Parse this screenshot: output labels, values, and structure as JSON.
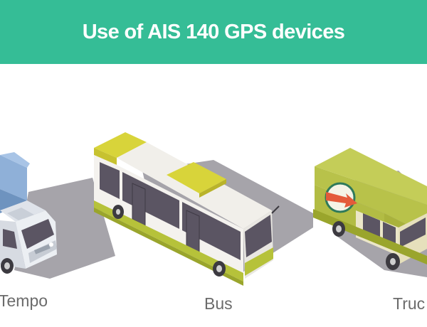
{
  "header": {
    "title": "Use of AIS 140 GPS devices",
    "background_color": "#35bd96",
    "text_color": "#ffffff"
  },
  "vehicles": [
    {
      "label": "Tempo",
      "icon": "tempo-icon"
    },
    {
      "label": "Bus",
      "icon": "bus-icon"
    },
    {
      "label": "Truc",
      "icon": "truck-icon"
    }
  ],
  "colors": {
    "bus_roof": "#d8d43a",
    "bus_body": "#f4f2ee",
    "truck_body": "#b8c24a",
    "tempo_cargo": "#8fb0d8",
    "shadow": "#a6a4aa"
  }
}
